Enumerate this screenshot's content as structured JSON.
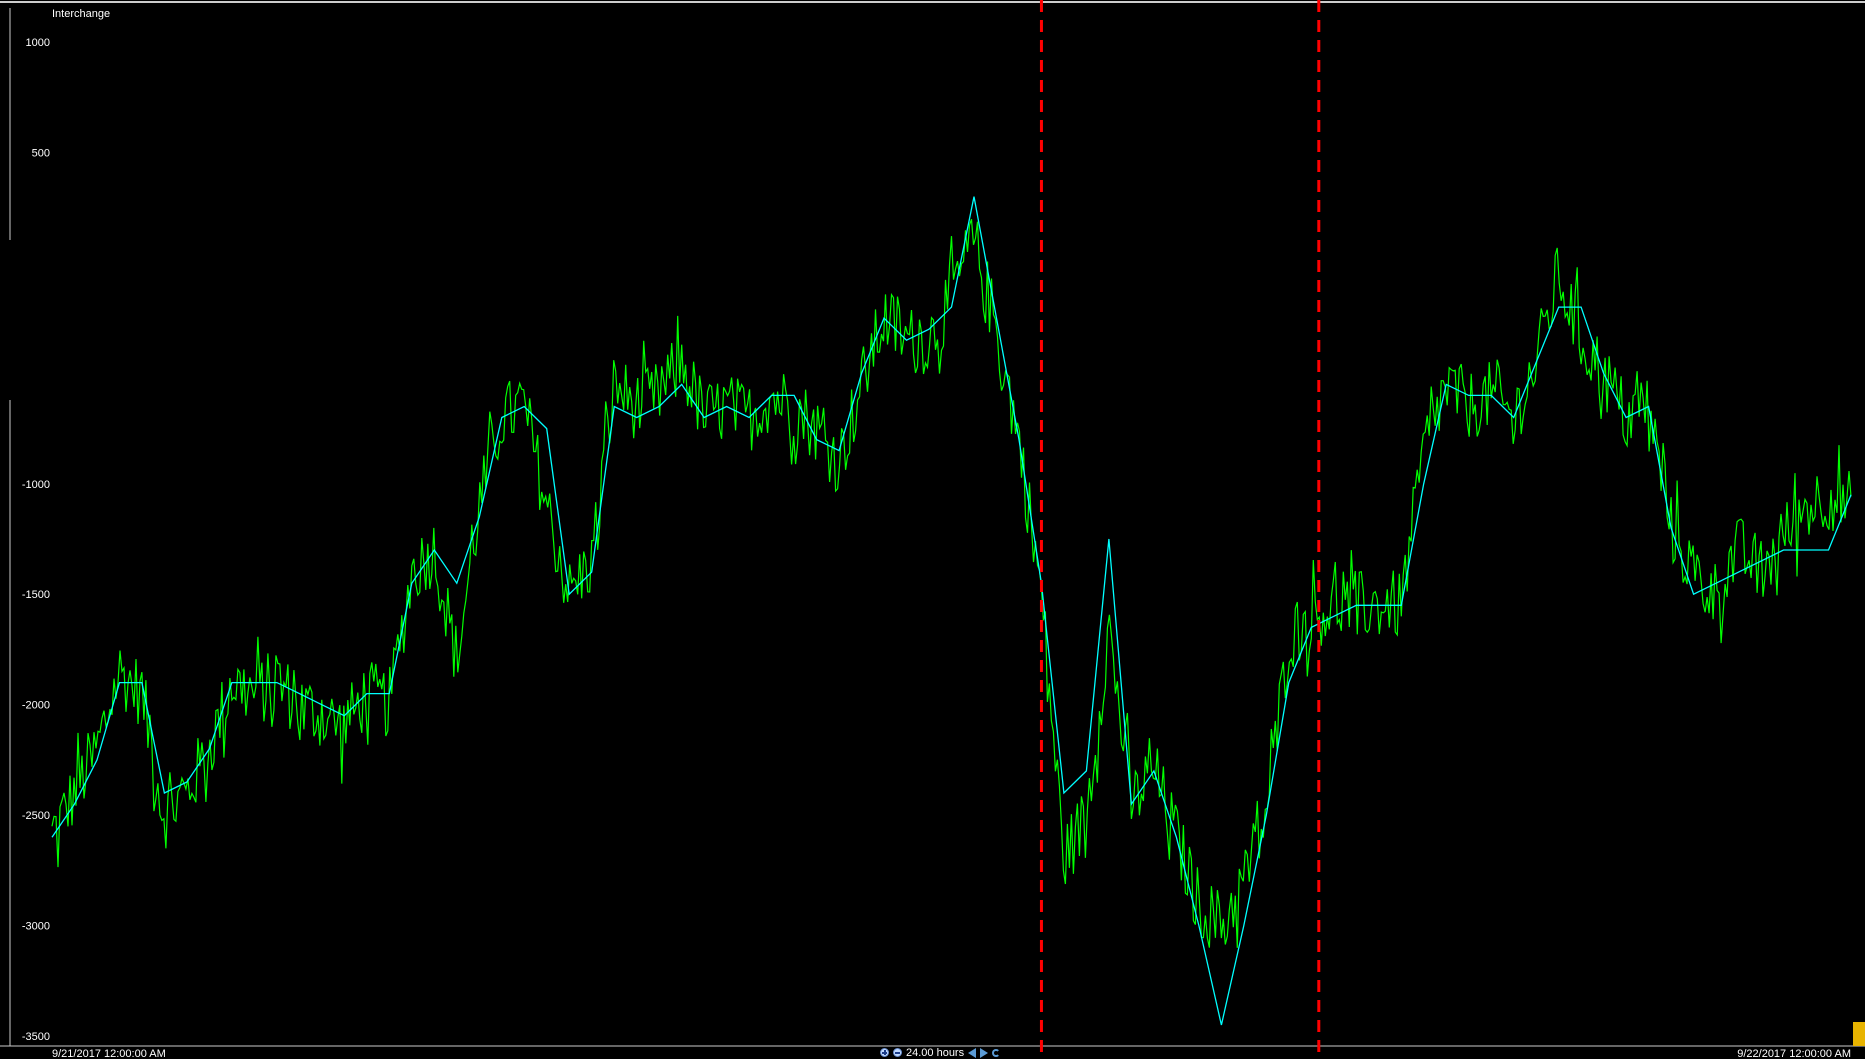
{
  "chart_data": {
    "type": "line",
    "title": "Interchange",
    "yticks": [
      1000,
      500,
      -1000,
      -1500,
      -2000,
      -2500,
      -3000,
      -3500
    ],
    "ylim": [
      -3500,
      1000
    ],
    "xlim_labels": [
      "9/21/2017 12:00:00 AM",
      "9/22/2017 12:00:00 AM"
    ],
    "x_hours_range": [
      0,
      24
    ],
    "grid": false,
    "legend": "none",
    "series": [
      {
        "color": "#00ff00",
        "x": [
          0,
          0.3,
          0.6,
          0.9,
          1.2,
          1.5,
          1.8,
          2.1,
          2.4,
          2.7,
          3.0,
          3.3,
          3.6,
          3.9,
          4.2,
          4.5,
          4.8,
          5.1,
          5.4,
          5.7,
          6.0,
          6.3,
          6.6,
          6.9,
          7.2,
          7.5,
          7.8,
          8.1,
          8.4,
          8.7,
          9.0,
          9.3,
          9.6,
          9.9,
          10.2,
          10.5,
          10.8,
          11.1,
          11.4,
          11.7,
          12.0,
          12.3,
          12.6,
          12.9,
          13.2,
          13.5,
          13.8,
          14.1,
          14.4,
          14.7,
          15.0,
          15.3,
          15.6,
          15.9,
          16.2,
          16.5,
          16.8,
          17.1,
          17.4,
          17.7,
          18.0,
          18.3,
          18.6,
          18.9,
          19.2,
          19.5,
          19.8,
          20.1,
          20.4,
          20.7,
          21.0,
          21.3,
          21.6,
          21.9,
          22.2,
          22.5,
          22.8,
          23.1,
          23.4,
          23.7,
          24.0
        ],
        "y": [
          -2600,
          -2400,
          -2200,
          -1850,
          -1950,
          -2500,
          -2400,
          -2200,
          -1900,
          -1950,
          -1900,
          -2000,
          -2050,
          -2100,
          -1950,
          -2000,
          -1400,
          -1300,
          -1800,
          -1100,
          -700,
          -650,
          -1100,
          -1500,
          -1350,
          -550,
          -650,
          -600,
          -450,
          -700,
          -650,
          -700,
          -600,
          -650,
          -750,
          -900,
          -550,
          -250,
          -350,
          -350,
          -150,
          100,
          -300,
          -800,
          -1500,
          -2700,
          -2500,
          -1650,
          -2450,
          -2300,
          -2600,
          -2900,
          -3000,
          -2800,
          -2500,
          -1700,
          -1600,
          -1550,
          -1550,
          -1550,
          -1550,
          -850,
          -550,
          -650,
          -600,
          -700,
          -450,
          -50,
          -350,
          -500,
          -700,
          -650,
          -1200,
          -1400,
          -1500,
          -1300,
          -1400,
          -1250,
          -1100,
          -1050,
          -1100
        ],
        "noise": 160
      },
      {
        "color": "#00ffff",
        "x": [
          0,
          0.3,
          0.6,
          0.9,
          1.2,
          1.5,
          1.8,
          2.1,
          2.4,
          2.7,
          3.0,
          3.3,
          3.6,
          3.9,
          4.2,
          4.5,
          4.8,
          5.1,
          5.4,
          5.7,
          6.0,
          6.3,
          6.6,
          6.9,
          7.2,
          7.5,
          7.8,
          8.1,
          8.4,
          8.7,
          9.0,
          9.3,
          9.6,
          9.9,
          10.2,
          10.5,
          10.8,
          11.1,
          11.4,
          11.7,
          12.0,
          12.3,
          12.6,
          12.9,
          13.2,
          13.5,
          13.8,
          14.1,
          14.4,
          14.7,
          15.0,
          15.3,
          15.6,
          15.9,
          16.2,
          16.5,
          16.8,
          17.1,
          17.4,
          17.7,
          18.0,
          18.3,
          18.6,
          18.9,
          19.2,
          19.5,
          19.8,
          20.1,
          20.4,
          20.7,
          21.0,
          21.3,
          21.6,
          21.9,
          22.2,
          22.5,
          22.8,
          23.1,
          23.4,
          23.7,
          24.0
        ],
        "y": [
          -2600,
          -2450,
          -2250,
          -1900,
          -1900,
          -2400,
          -2350,
          -2200,
          -1900,
          -1900,
          -1900,
          -1950,
          -2000,
          -2050,
          -1950,
          -1950,
          -1450,
          -1300,
          -1450,
          -1150,
          -700,
          -650,
          -750,
          -1500,
          -1400,
          -650,
          -700,
          -650,
          -550,
          -700,
          -650,
          -700,
          -600,
          -600,
          -800,
          -850,
          -500,
          -250,
          -350,
          -300,
          -200,
          300,
          -250,
          -800,
          -1450,
          -2400,
          -2300,
          -1250,
          -2450,
          -2300,
          -2600,
          -3000,
          -3450,
          -3000,
          -2500,
          -1900,
          -1650,
          -1600,
          -1550,
          -1550,
          -1550,
          -1000,
          -550,
          -600,
          -600,
          -700,
          -450,
          -200,
          -200,
          -500,
          -700,
          -650,
          -1200,
          -1500,
          -1450,
          -1400,
          -1350,
          -1300,
          -1300,
          -1300,
          -1050
        ]
      }
    ],
    "markers": [
      {
        "x": 13.2,
        "color": "#ff0000",
        "style": "dashed"
      },
      {
        "x": 16.9,
        "color": "#ff0000",
        "style": "dashed"
      }
    ]
  },
  "toolbar": {
    "range_label": "24.00 hours"
  }
}
